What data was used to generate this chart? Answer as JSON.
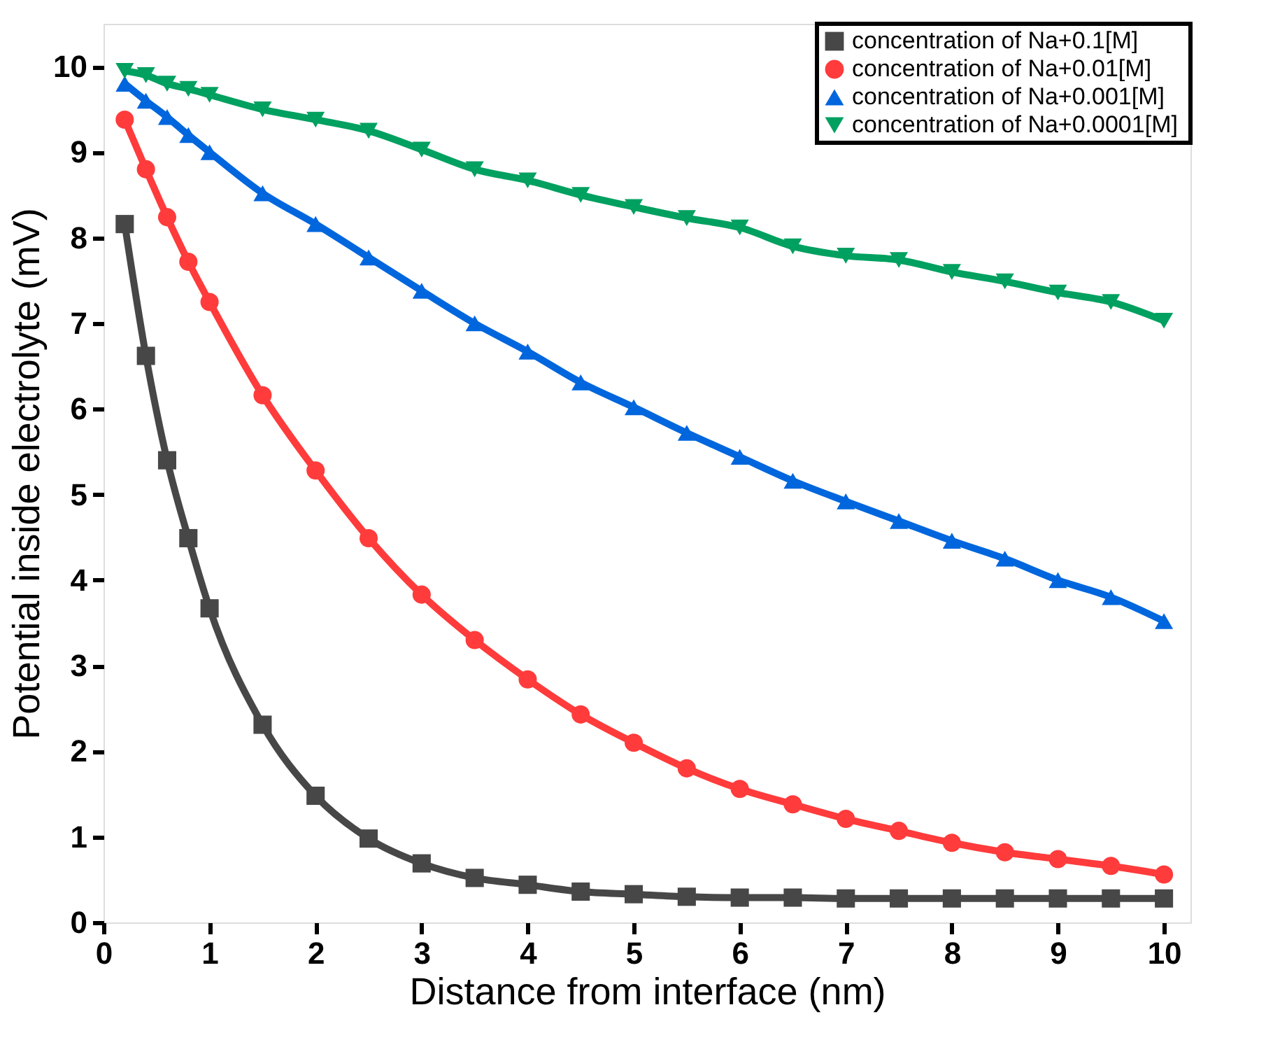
{
  "chart_data": {
    "type": "line",
    "xlabel": "Distance from interface (nm)",
    "ylabel": "Potential inside electrolyte (mV)",
    "x": [
      0.2,
      0.4,
      0.6,
      0.8,
      1.0,
      1.5,
      2.0,
      2.5,
      3.0,
      3.5,
      4.0,
      4.5,
      5.0,
      5.5,
      6.0,
      6.5,
      7.0,
      7.5,
      8.0,
      8.5,
      9.0,
      9.5,
      10.0
    ],
    "series": [
      {
        "name": "concentration of Na+0.1[M]",
        "color": "#474747",
        "marker": "square",
        "values": [
          8.16,
          6.62,
          5.4,
          4.49,
          3.67,
          2.31,
          1.48,
          0.98,
          0.69,
          0.52,
          0.44,
          0.36,
          0.33,
          0.3,
          0.29,
          0.29,
          0.28,
          0.28,
          0.28,
          0.28,
          0.28,
          0.28,
          0.28
        ]
      },
      {
        "name": "concentration  of Na+0.01[M]",
        "color": "#ff3b3b",
        "marker": "circle",
        "values": [
          9.38,
          8.8,
          8.24,
          7.72,
          7.25,
          6.16,
          5.28,
          4.49,
          3.83,
          3.3,
          2.84,
          2.43,
          2.1,
          1.8,
          1.56,
          1.38,
          1.21,
          1.07,
          0.93,
          0.82,
          0.74,
          0.66,
          0.56
        ]
      },
      {
        "name": "concentration of Na+0.001[M]",
        "color": "#0066dd",
        "marker": "triangle",
        "values": [
          9.8,
          9.6,
          9.41,
          9.2,
          9.0,
          8.52,
          8.16,
          7.77,
          7.38,
          7.0,
          6.67,
          6.31,
          6.02,
          5.72,
          5.44,
          5.16,
          4.92,
          4.69,
          4.46,
          4.25,
          4.0,
          3.8,
          3.52
        ]
      },
      {
        "name": "concentration  of Na+0.0001[M]",
        "color": "#00a060",
        "marker": "triangle-down",
        "values": [
          9.95,
          9.9,
          9.8,
          9.74,
          9.67,
          9.5,
          9.38,
          9.25,
          9.03,
          8.8,
          8.67,
          8.5,
          8.36,
          8.23,
          8.12,
          7.9,
          7.79,
          7.74,
          7.6,
          7.49,
          7.36,
          7.25,
          7.03
        ]
      }
    ],
    "xlim": [
      0,
      10.25
    ],
    "ylim": [
      0,
      10.5
    ],
    "xticks": [
      0,
      1,
      2,
      3,
      4,
      5,
      6,
      7,
      8,
      9,
      10
    ],
    "yticks": [
      0,
      1,
      2,
      3,
      4,
      5,
      6,
      7,
      8,
      9,
      10
    ],
    "grid": false,
    "legend": "top right",
    "line_style": "solid"
  }
}
